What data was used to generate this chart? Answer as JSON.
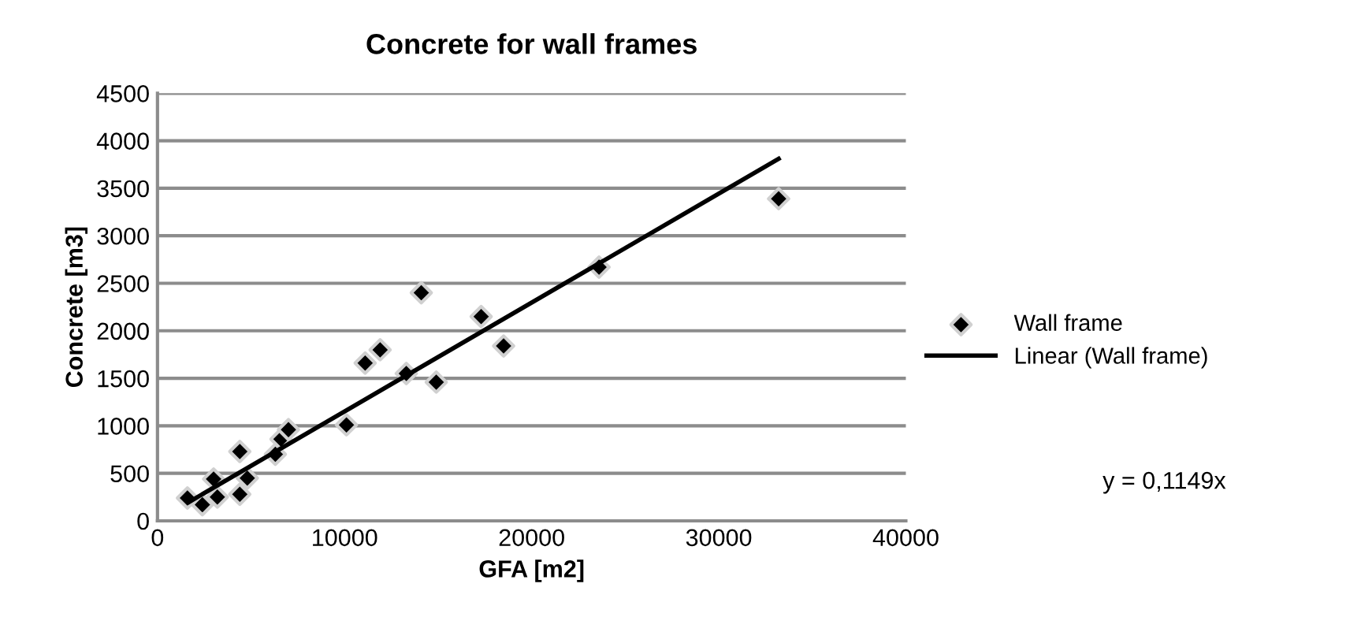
{
  "chart_data": {
    "type": "scatter",
    "title": "Concrete for wall frames",
    "xlabel": "GFA [m2]",
    "ylabel": "Concrete [m3]",
    "series": [
      {
        "name": "Wall frame",
        "color": "#000000",
        "marker": "diamond",
        "x": [
          1600,
          2400,
          3200,
          3000,
          4400,
          4800,
          4400,
          6300,
          6600,
          7000,
          10100,
          11100,
          11900,
          13300,
          14900,
          14100,
          17300,
          18500,
          23600,
          33200
        ],
        "values": [
          240,
          170,
          250,
          440,
          280,
          450,
          730,
          700,
          860,
          960,
          1010,
          1660,
          1800,
          1550,
          1460,
          2400,
          2150,
          1840,
          2670,
          3390
        ]
      },
      {
        "name": "Linear (Wall frame)",
        "type": "line",
        "color": "#000000",
        "marker": "none",
        "x": [
          1700,
          33200
        ],
        "values": [
          200,
          3810
        ]
      }
    ],
    "annotations": [
      "y = 0,1149x"
    ],
    "xlim": [
      0,
      40000
    ],
    "xticks": [
      0,
      10000,
      20000,
      30000,
      40000
    ],
    "ylim": [
      0,
      4500
    ],
    "yticks": [
      0,
      500,
      1000,
      1500,
      2000,
      2500,
      3000,
      3500,
      4000,
      4500
    ],
    "grid": "y",
    "legend": "right"
  }
}
